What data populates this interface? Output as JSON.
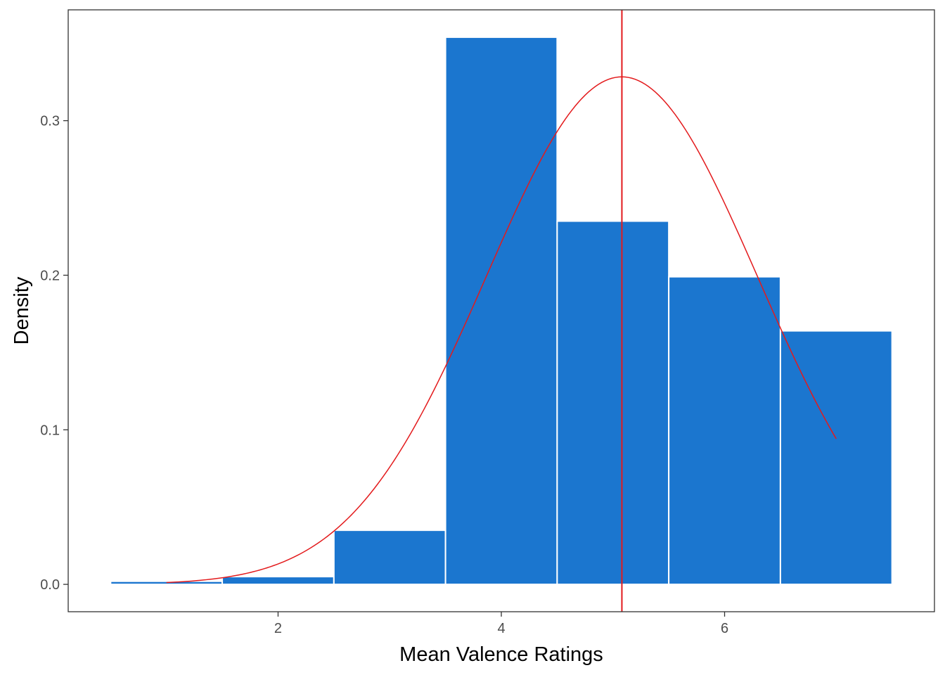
{
  "chart_data": {
    "type": "bar",
    "xlabel": "Mean Valence Ratings",
    "ylabel": "Density",
    "xlim": [
      0.12,
      7.88
    ],
    "ylim": [
      -0.0177,
      0.3717
    ],
    "x_ticks": [
      2,
      4,
      6
    ],
    "x_tick_labels": [
      "2",
      "4",
      "6"
    ],
    "y_ticks": [
      0.0,
      0.1,
      0.2,
      0.3
    ],
    "y_tick_labels": [
      "0.0",
      "0.1",
      "0.2",
      "0.3"
    ],
    "bin_width": 1,
    "bins": [
      {
        "center": 1,
        "density": 0.002
      },
      {
        "center": 2,
        "density": 0.005
      },
      {
        "center": 3,
        "density": 0.035
      },
      {
        "center": 4,
        "density": 0.354
      },
      {
        "center": 5,
        "density": 0.235
      },
      {
        "center": 6,
        "density": 0.199
      },
      {
        "center": 7,
        "density": 0.164
      }
    ],
    "normal_curve": {
      "mean": 5.08,
      "sd": 1.215,
      "x_range": [
        1,
        7
      ],
      "points": [
        {
          "x": 1.0,
          "y": 0.001
        },
        {
          "x": 1.5,
          "y": 0.002
        },
        {
          "x": 2.0,
          "y": 0.013
        },
        {
          "x": 2.5,
          "y": 0.034
        },
        {
          "x": 3.0,
          "y": 0.073
        },
        {
          "x": 3.5,
          "y": 0.141
        },
        {
          "x": 4.0,
          "y": 0.223
        },
        {
          "x": 4.5,
          "y": 0.293
        },
        {
          "x": 5.0,
          "y": 0.328
        },
        {
          "x": 5.5,
          "y": 0.31
        },
        {
          "x": 6.0,
          "y": 0.247
        },
        {
          "x": 6.5,
          "y": 0.165
        },
        {
          "x": 7.0,
          "y": 0.092
        }
      ]
    },
    "vline_x": 5.08,
    "colors": {
      "bar_fill": "#1b76cf",
      "bar_stroke": "#ffffff",
      "curve": "#e31a1c",
      "vline": "#e31a1c",
      "panel_border": "#333333",
      "tick_label": "#4d4d4d"
    },
    "grid": false,
    "legend": "none"
  }
}
